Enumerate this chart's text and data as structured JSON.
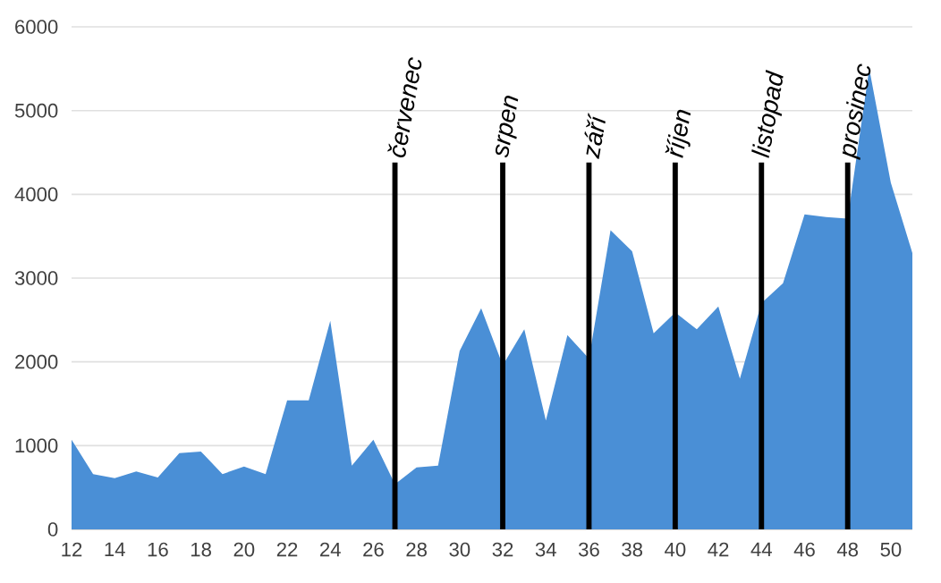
{
  "chart_data": {
    "type": "area",
    "x": [
      12,
      13,
      14,
      15,
      16,
      17,
      18,
      19,
      20,
      21,
      22,
      23,
      24,
      25,
      26,
      27,
      28,
      29,
      30,
      31,
      32,
      33,
      34,
      35,
      36,
      37,
      38,
      39,
      40,
      41,
      42,
      43,
      44,
      45,
      46,
      47,
      48,
      49,
      50,
      51
    ],
    "values": [
      1070,
      660,
      610,
      690,
      620,
      910,
      930,
      660,
      750,
      660,
      1540,
      1540,
      2490,
      760,
      1070,
      540,
      740,
      760,
      2130,
      2640,
      1960,
      2390,
      1300,
      2320,
      2040,
      3570,
      3320,
      2340,
      2590,
      2390,
      2660,
      1800,
      2700,
      2940,
      3760,
      3730,
      3710,
      5500,
      4140,
      3300
    ],
    "color": "#4a8fd6",
    "xlim": [
      12,
      51
    ],
    "xticks": [
      12,
      14,
      16,
      18,
      20,
      22,
      24,
      26,
      28,
      30,
      32,
      34,
      36,
      38,
      40,
      42,
      44,
      46,
      48,
      50
    ],
    "ylim": [
      0,
      6000
    ],
    "yticks": [
      0,
      1000,
      2000,
      3000,
      4000,
      5000,
      6000
    ],
    "grid": "y",
    "ref_lines": [
      {
        "axis": "x",
        "value": 27,
        "label": "červenec",
        "color": "#000000"
      },
      {
        "axis": "x",
        "value": 32,
        "label": "srpen",
        "color": "#000000"
      },
      {
        "axis": "x",
        "value": 36,
        "label": "září",
        "color": "#000000"
      },
      {
        "axis": "x",
        "value": 40,
        "label": "říjen",
        "color": "#000000"
      },
      {
        "axis": "x",
        "value": 44,
        "label": "listopad",
        "color": "#000000"
      },
      {
        "axis": "x",
        "value": 48,
        "label": "prosinec",
        "color": "#000000"
      }
    ]
  }
}
